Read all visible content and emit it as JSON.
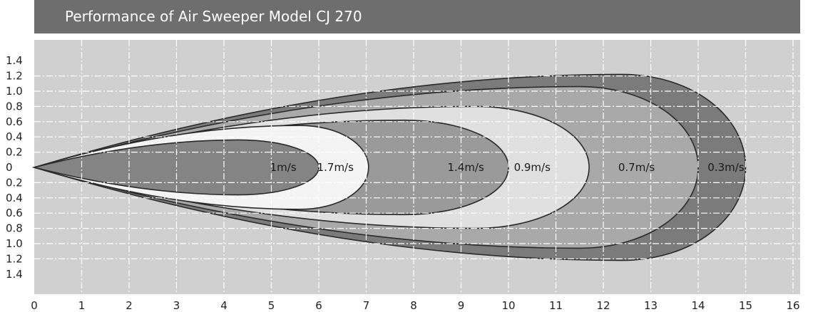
{
  "chart_data": {
    "type": "area",
    "title": "Performance of Air Sweeper Model CJ 270",
    "xlabel": "",
    "ylabel": "",
    "xlim": [
      0,
      16
    ],
    "ylim": [
      -1.4,
      1.4
    ],
    "x_ticks": [
      "0",
      "1",
      "2",
      "3",
      "4",
      "5",
      "6",
      "7",
      "8",
      "9",
      "10",
      "11",
      "12",
      "13",
      "14",
      "15",
      "16"
    ],
    "y_ticks": [
      "1.4",
      "1.2",
      "1.0",
      "0.8",
      "0.6",
      "0.4",
      "0.2",
      "0",
      "0.2",
      "0.4",
      "0.6",
      "0.8",
      "1.0",
      "1.2",
      "1.4"
    ],
    "grid": true,
    "series": [
      {
        "name": "0.3m/s",
        "reach": 15.0,
        "peak_x": 12.4,
        "half_width": 1.22,
        "color": "#7b7b7b"
      },
      {
        "name": "0.7m/s",
        "reach": 14.0,
        "peak_x": 11.5,
        "half_width": 1.06,
        "color": "#a9a9a9"
      },
      {
        "name": "0.9m/s",
        "reach": 11.7,
        "peak_x": 9.3,
        "half_width": 0.8,
        "color": "#e0e0e0"
      },
      {
        "name": "1.4m/s",
        "reach": 10.0,
        "peak_x": 7.8,
        "half_width": 0.62,
        "color": "#9a9a9a"
      },
      {
        "name": "1.7m/s",
        "reach": 7.05,
        "peak_x": 5.6,
        "half_width": 0.55,
        "color": "#f4f4f4"
      },
      {
        "name": "1m/s",
        "reach": 6.0,
        "peak_x": 4.3,
        "half_width": 0.36,
        "color": "#848484"
      }
    ]
  },
  "title_bar": {
    "color": "#6e6e6e"
  },
  "plot_background": "#d0d0d0"
}
